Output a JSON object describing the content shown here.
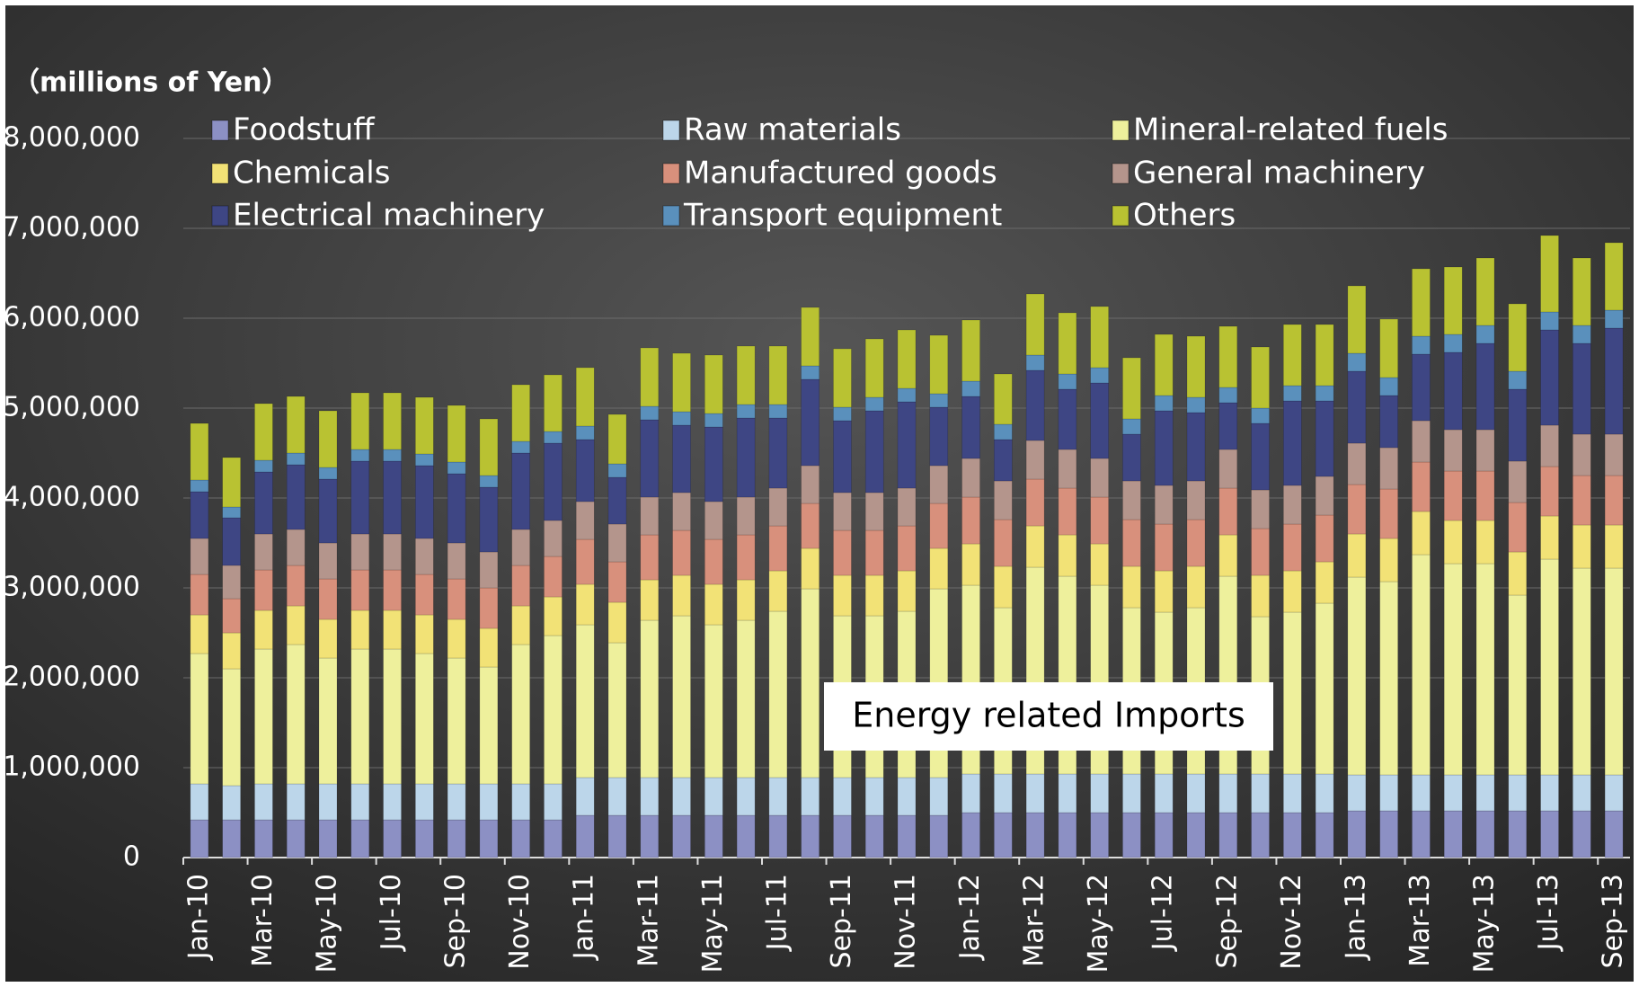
{
  "chart_data": {
    "type": "stacked_bar",
    "y_label": "（millions of Yen）",
    "annotation": "Energy related Imports",
    "categories": [
      "Jan-10",
      null,
      "Mar-10",
      null,
      "May-10",
      null,
      "Jul-10",
      null,
      "Sep-10",
      null,
      "Nov-10",
      null,
      "Jan-11",
      null,
      "Mar-11",
      null,
      "May-11",
      null,
      "Jul-11",
      null,
      "Sep-11",
      null,
      "Nov-11",
      null,
      "Jan-12",
      null,
      "Mar-12",
      null,
      "May-12",
      null,
      "Jul-12",
      null,
      "Sep-12",
      null,
      "Nov-12",
      null,
      "Jan-13",
      null,
      "Mar-13",
      null,
      "May-13",
      null,
      "Jul-13",
      null,
      "Sep-13"
    ],
    "ylim": [
      0,
      8000000
    ],
    "yticks": [
      0,
      {
        "value": 1000000,
        "label": "1,000,000"
      },
      {
        "value": 2000000,
        "label": "2,000,000"
      },
      {
        "value": 3000000,
        "label": "3,000,000"
      },
      {
        "value": 4000000,
        "label": "4,000,000"
      },
      {
        "value": 5000000,
        "label": "5,000,000"
      },
      {
        "value": 6000000,
        "label": "6,000,000"
      },
      {
        "value": 7000000,
        "label": "7,000,000"
      },
      {
        "value": 8000000,
        "label": "8,000,000"
      }
    ],
    "grid": true,
    "series": [
      {
        "name": "Foodstuff",
        "color": "#8c90c4",
        "values": [
          420000,
          420000,
          420000,
          420000,
          420000,
          420000,
          420000,
          420000,
          420000,
          420000,
          420000,
          420000,
          470000,
          470000,
          470000,
          470000,
          470000,
          470000,
          470000,
          470000,
          470000,
          470000,
          470000,
          470000,
          500000,
          500000,
          500000,
          500000,
          500000,
          500000,
          500000,
          500000,
          500000,
          500000,
          500000,
          500000,
          520000,
          520000,
          520000,
          520000,
          520000,
          520000,
          520000,
          520000,
          520000
        ]
      },
      {
        "name": "Raw materials",
        "color": "#bcd6ea",
        "values": [
          400000,
          380000,
          400000,
          400000,
          400000,
          400000,
          400000,
          400000,
          400000,
          400000,
          400000,
          400000,
          420000,
          420000,
          420000,
          420000,
          420000,
          420000,
          420000,
          420000,
          420000,
          420000,
          420000,
          420000,
          430000,
          430000,
          430000,
          430000,
          430000,
          430000,
          430000,
          430000,
          430000,
          430000,
          430000,
          430000,
          400000,
          400000,
          400000,
          400000,
          400000,
          400000,
          400000,
          400000,
          400000
        ]
      },
      {
        "name": "Mineral-related fuels",
        "color": "#eef09c",
        "values": [
          1450000,
          1300000,
          1500000,
          1550000,
          1400000,
          1500000,
          1500000,
          1450000,
          1400000,
          1300000,
          1550000,
          1650000,
          1700000,
          1500000,
          1750000,
          1800000,
          1700000,
          1750000,
          1850000,
          2100000,
          1800000,
          1800000,
          1850000,
          2100000,
          2100000,
          1850000,
          2300000,
          2200000,
          2100000,
          1850000,
          1800000,
          1850000,
          2200000,
          1750000,
          1800000,
          1900000,
          2200000,
          2150000,
          2450000,
          2350000,
          2350000,
          2000000,
          2400000,
          2300000,
          2300000
        ]
      },
      {
        "name": "Chemicals",
        "color": "#f2e276",
        "values": [
          430000,
          400000,
          430000,
          430000,
          430000,
          430000,
          430000,
          430000,
          430000,
          430000,
          430000,
          430000,
          450000,
          450000,
          450000,
          450000,
          450000,
          450000,
          450000,
          450000,
          450000,
          450000,
          450000,
          450000,
          460000,
          460000,
          460000,
          460000,
          460000,
          460000,
          460000,
          460000,
          460000,
          460000,
          460000,
          460000,
          480000,
          480000,
          480000,
          480000,
          480000,
          480000,
          480000,
          480000,
          480000
        ]
      },
      {
        "name": "Manufactured goods",
        "color": "#d8907c",
        "values": [
          450000,
          380000,
          450000,
          450000,
          450000,
          450000,
          450000,
          450000,
          450000,
          450000,
          450000,
          450000,
          500000,
          450000,
          500000,
          500000,
          500000,
          500000,
          500000,
          500000,
          500000,
          500000,
          500000,
          500000,
          520000,
          520000,
          520000,
          520000,
          520000,
          520000,
          520000,
          520000,
          520000,
          520000,
          520000,
          520000,
          550000,
          550000,
          550000,
          550000,
          550000,
          550000,
          550000,
          550000,
          550000
        ]
      },
      {
        "name": "General machinery",
        "color": "#b4958c",
        "values": [
          400000,
          370000,
          400000,
          400000,
          400000,
          400000,
          400000,
          400000,
          400000,
          400000,
          400000,
          400000,
          420000,
          420000,
          420000,
          420000,
          420000,
          420000,
          420000,
          420000,
          420000,
          420000,
          420000,
          420000,
          430000,
          430000,
          430000,
          430000,
          430000,
          430000,
          430000,
          430000,
          430000,
          430000,
          430000,
          430000,
          460000,
          460000,
          460000,
          460000,
          460000,
          460000,
          460000,
          460000,
          460000
        ]
      },
      {
        "name": "Electrical machinery",
        "color": "#3e4684",
        "values": [
          520000,
          530000,
          690000,
          720000,
          710000,
          810000,
          810000,
          810000,
          770000,
          720000,
          850000,
          860000,
          690000,
          520000,
          860000,
          750000,
          830000,
          880000,
          780000,
          960000,
          800000,
          910000,
          960000,
          650000,
          690000,
          460000,
          780000,
          670000,
          840000,
          520000,
          830000,
          760000,
          520000,
          740000,
          940000,
          840000,
          800000,
          580000,
          740000,
          860000,
          960000,
          800000,
          1060000,
          1010000,
          1180000
        ]
      },
      {
        "name": "Transport equipment",
        "color": "#5a90bc",
        "values": [
          130000,
          120000,
          130000,
          130000,
          130000,
          130000,
          130000,
          130000,
          130000,
          130000,
          130000,
          130000,
          150000,
          150000,
          150000,
          150000,
          150000,
          150000,
          150000,
          150000,
          150000,
          150000,
          150000,
          150000,
          170000,
          170000,
          170000,
          170000,
          170000,
          170000,
          170000,
          170000,
          170000,
          170000,
          170000,
          170000,
          200000,
          200000,
          200000,
          200000,
          200000,
          200000,
          200000,
          200000,
          200000
        ]
      },
      {
        "name": "Others",
        "color": "#b9c232",
        "values": [
          630000,
          550000,
          630000,
          630000,
          630000,
          630000,
          630000,
          630000,
          630000,
          630000,
          630000,
          630000,
          650000,
          550000,
          650000,
          650000,
          650000,
          650000,
          650000,
          650000,
          650000,
          650000,
          650000,
          650000,
          680000,
          560000,
          680000,
          680000,
          680000,
          680000,
          680000,
          680000,
          680000,
          680000,
          680000,
          680000,
          750000,
          650000,
          750000,
          750000,
          750000,
          750000,
          850000,
          750000,
          750000
        ]
      }
    ]
  }
}
